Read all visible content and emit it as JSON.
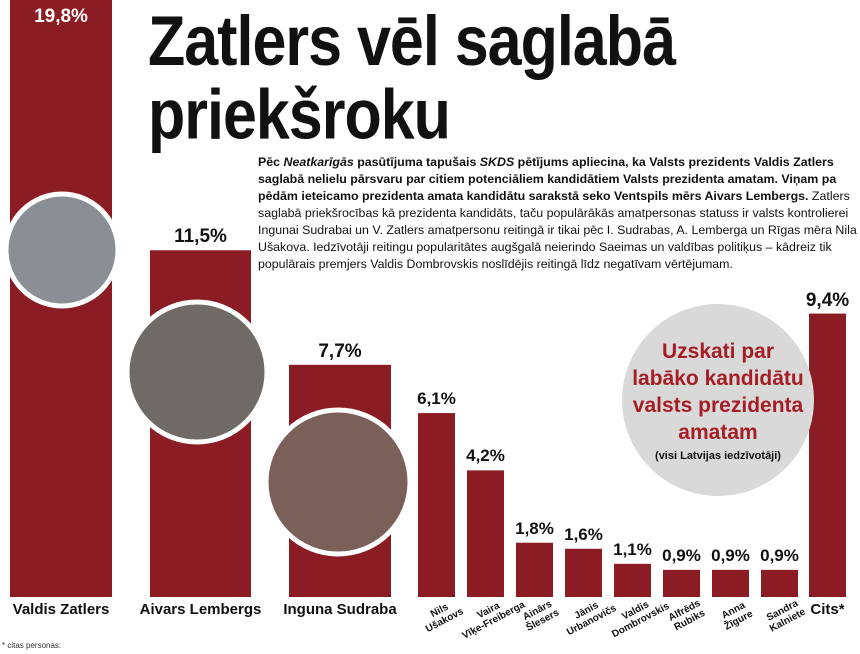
{
  "chart_data": {
    "type": "bar",
    "title": "Zatlers vēl saglabā priekšroku",
    "text_segments": [
      {
        "text": "Pēc ",
        "weight": "bold",
        "style": "normal"
      },
      {
        "text": "Neatkarīgās",
        "weight": "bold",
        "style": "italic"
      },
      {
        "text": " pasūtījuma tapušais ",
        "weight": "bold",
        "style": "normal"
      },
      {
        "text": "SKDS",
        "weight": "bold",
        "style": "italic"
      },
      {
        "text": " pētījums apliecina, ka Valsts prezidents Valdis Zatlers saglabā nelielu pārsvaru par citiem potenciāliem kandidātiem Valsts prezidenta amatam. Viņam pa pēdām ieteicamo prezidenta amata kandidātu sarakstā seko Ventspils mērs Aivars Lembergs.",
        "weight": "bold",
        "style": "normal"
      },
      {
        "text": " Zatlers saglabā priekšrocības kā prezidenta kandidāts, taču populārākās amatpersonas statuss ir valsts kontrolierei Ingunai Sudrabai un V. Zatlers amatpersonu reitingā ir tikai pēc I. Sudrabas, A. Lemberga un Rīgas mēra Nila Ušakova. Iedzīvotāji reitingu popularitātes augšgalā neierindo Saeimas un valdības politiķus – kādreiz tik populārais premjers Valdis Dombrovskis noslīdējis reitingā līdz negatīvam vērtējumam.",
        "weight": "normal",
        "style": "normal"
      }
    ],
    "badge_title": "Uzskati par labāko kandidātu valsts prezidenta amatam",
    "badge_subtitle": "(visi Latvijas iedzīvotāji)",
    "footnote": "* citas personas:",
    "categories": [
      "Valdis Zatlers",
      "Aivars Lembergs",
      "Inguna Sudraba",
      "Nils Ušakovs",
      "Vaira Vīķe-Freiberga",
      "Ainārs Šlesers",
      "Jānis Urbanovičs",
      "Valdis Dombrovskis",
      "Alfrēds Rubiks",
      "Anna Žīgure",
      "Sandra Kalniete",
      "Cits*"
    ],
    "values": [
      19.8,
      11.5,
      7.7,
      6.1,
      4.2,
      1.8,
      1.6,
      1.1,
      0.9,
      0.9,
      0.9,
      9.4
    ],
    "value_labels": [
      "19,8%",
      "11,5%",
      "7,7%",
      "6,1%",
      "4,2%",
      "1,8%",
      "1,6%",
      "1,1%",
      "0,9%",
      "0,9%",
      "0,9%",
      "9,4%"
    ],
    "color": "#8c1c24"
  }
}
